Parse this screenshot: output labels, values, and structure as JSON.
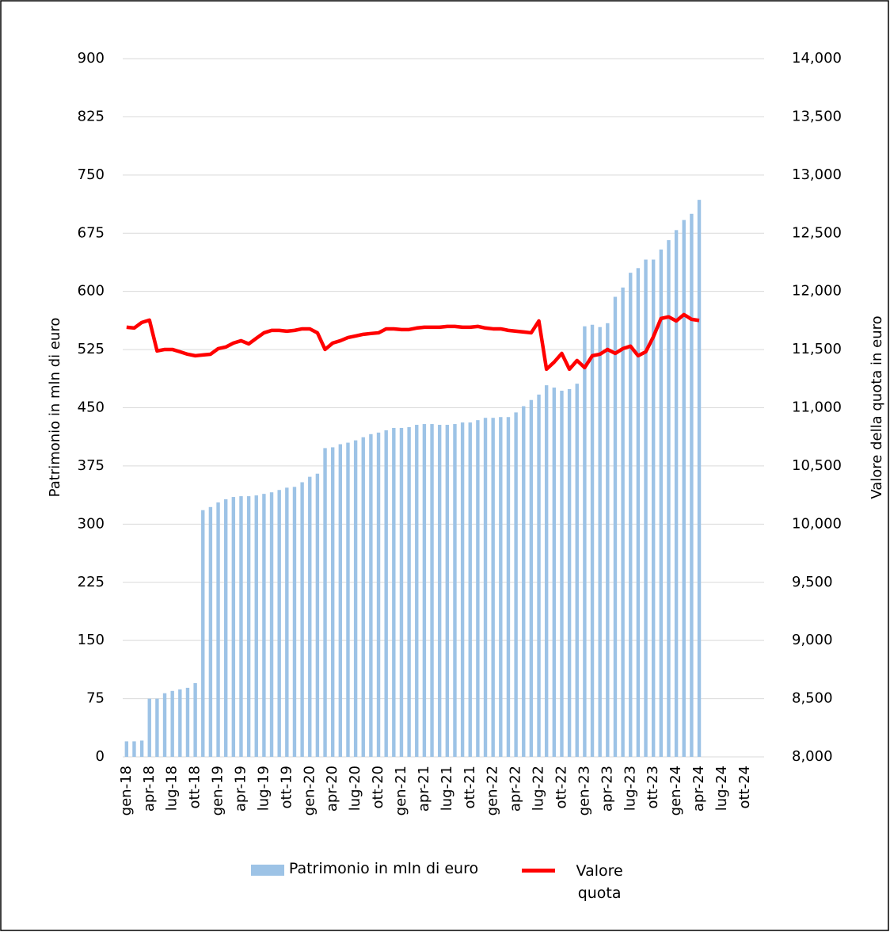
{
  "chart_data": {
    "type": "bar-line",
    "categories": [
      "gen-18",
      null,
      null,
      "apr-18",
      null,
      null,
      "lug-18",
      null,
      null,
      "ott-18",
      null,
      null,
      "gen-19",
      null,
      null,
      "apr-19",
      null,
      null,
      "lug-19",
      null,
      null,
      "ott-19",
      null,
      null,
      "gen-20",
      null,
      null,
      "apr-20",
      null,
      null,
      "lug-20",
      null,
      null,
      "ott-20",
      null,
      null,
      "gen-21",
      null,
      null,
      "apr-21",
      null,
      null,
      "lug-21",
      null,
      null,
      "ott-21",
      null,
      null,
      "gen-22",
      null,
      null,
      "apr-22",
      null,
      null,
      "lug-22",
      null,
      null,
      "ott-22",
      null,
      null,
      "gen-23",
      null,
      null,
      "apr-23",
      null,
      null,
      "lug-23",
      null,
      null,
      "ott-23",
      null,
      null,
      "gen-24",
      null,
      null,
      "apr-24",
      null,
      null,
      "lug-24",
      null,
      null,
      "ott-24",
      null,
      null
    ],
    "series": [
      {
        "name": "Patrimonio in mln di euro",
        "type": "bar",
        "color": "#9dc3e6",
        "values": [
          20,
          20,
          21,
          75,
          75,
          82,
          85,
          87,
          89,
          95,
          318,
          322,
          328,
          332,
          335,
          336,
          336,
          337,
          339,
          341,
          344,
          347,
          348,
          354,
          361,
          365,
          398,
          399,
          403,
          405,
          408,
          412,
          416,
          418,
          421,
          424,
          424,
          425,
          428,
          429,
          429,
          428,
          428,
          429,
          431,
          431,
          434,
          437,
          437,
          438,
          438,
          444,
          452,
          460,
          467,
          479,
          476,
          472,
          474,
          481,
          555,
          557,
          554,
          559,
          593,
          605,
          624,
          630,
          641,
          641,
          654,
          666,
          679,
          692,
          700,
          718,
          null,
          null,
          null,
          null,
          null,
          null,
          null,
          null
        ]
      },
      {
        "name": "Valore quota",
        "type": "line",
        "axis": "y2",
        "color": "#ff0000",
        "values": [
          11692,
          11685,
          11733,
          11753,
          11488,
          11501,
          11501,
          11481,
          11460,
          11447,
          11454,
          11460,
          11508,
          11522,
          11556,
          11576,
          11549,
          11597,
          11644,
          11665,
          11665,
          11658,
          11665,
          11678,
          11678,
          11644,
          11501,
          11556,
          11576,
          11603,
          11617,
          11631,
          11638,
          11644,
          11678,
          11678,
          11672,
          11672,
          11685,
          11692,
          11692,
          11692,
          11699,
          11699,
          11692,
          11692,
          11699,
          11685,
          11678,
          11678,
          11665,
          11658,
          11651,
          11644,
          11746,
          11331,
          11392,
          11467,
          11331,
          11406,
          11345,
          11447,
          11460,
          11501,
          11467,
          11508,
          11529,
          11447,
          11481,
          11610,
          11767,
          11781,
          11746,
          11801,
          11760,
          11750,
          null,
          null,
          null,
          null,
          null,
          null,
          null,
          null
        ]
      }
    ],
    "ylabel": "Patrimonio in mln di euro",
    "y2label": "Valore della quota in euro",
    "ylim": [
      0,
      900
    ],
    "yticks": [
      0,
      75,
      150,
      225,
      300,
      375,
      450,
      525,
      600,
      675,
      750,
      825,
      900
    ],
    "y2lim": [
      8000,
      14000
    ],
    "y2ticks": [
      {
        "value": 8000,
        "label": "8,000"
      },
      {
        "value": 8500,
        "label": "8,500"
      },
      {
        "value": 9000,
        "label": "9,000"
      },
      {
        "value": 9500,
        "label": "9,500"
      },
      {
        "value": 10000,
        "label": "10,000"
      },
      {
        "value": 10500,
        "label": "10,500"
      },
      {
        "value": 11000,
        "label": "11,000"
      },
      {
        "value": 11500,
        "label": "11,500"
      },
      {
        "value": 12000,
        "label": "12,000"
      },
      {
        "value": 12500,
        "label": "12,500"
      },
      {
        "value": 13000,
        "label": "13,000"
      },
      {
        "value": 13500,
        "label": "13,500"
      },
      {
        "value": 14000,
        "label": "14,000"
      }
    ],
    "grid": true
  }
}
